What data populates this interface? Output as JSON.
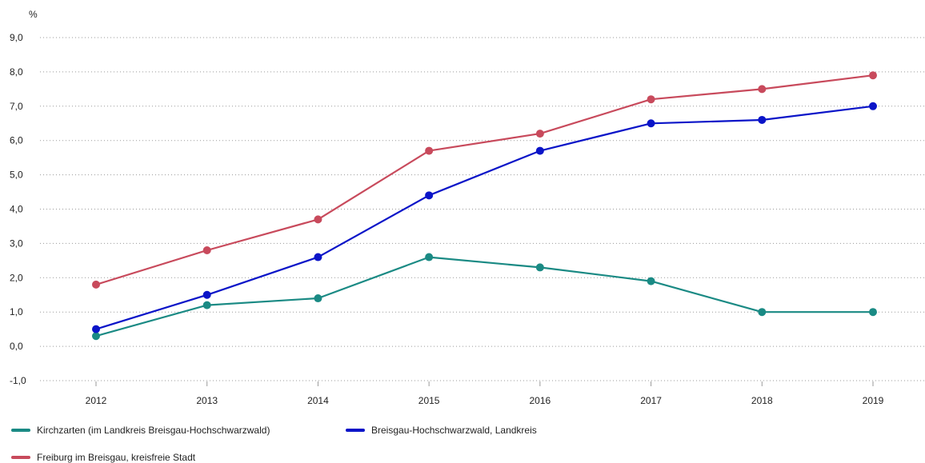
{
  "chart_data": {
    "type": "line",
    "unit": "%",
    "x": [
      "2012",
      "2013",
      "2014",
      "2015",
      "2016",
      "2017",
      "2018",
      "2019"
    ],
    "y_ticks": [
      "-1,0",
      "0,0",
      "1,0",
      "2,0",
      "3,0",
      "4,0",
      "5,0",
      "6,0",
      "7,0",
      "8,0",
      "9,0"
    ],
    "ylim": [
      -1,
      9
    ],
    "grid": true,
    "legend_position": "bottom",
    "series": [
      {
        "name": "Kirchzarten (im Landkreis Breisgau-Hochschwarzwald)",
        "color": "#1a8a84",
        "values": [
          0.3,
          1.2,
          1.4,
          2.6,
          2.3,
          1.9,
          1.0,
          1.0
        ]
      },
      {
        "name": "Breisgau-Hochschwarzwald, Landkreis",
        "color": "#0a14c8",
        "values": [
          0.5,
          1.5,
          2.6,
          4.4,
          5.7,
          6.5,
          6.6,
          7.0
        ]
      },
      {
        "name": "Freiburg im Breisgau, kreisfreie Stadt",
        "color": "#c84a5c",
        "values": [
          1.8,
          2.8,
          3.7,
          5.7,
          6.2,
          7.2,
          7.5,
          7.9
        ]
      }
    ]
  }
}
